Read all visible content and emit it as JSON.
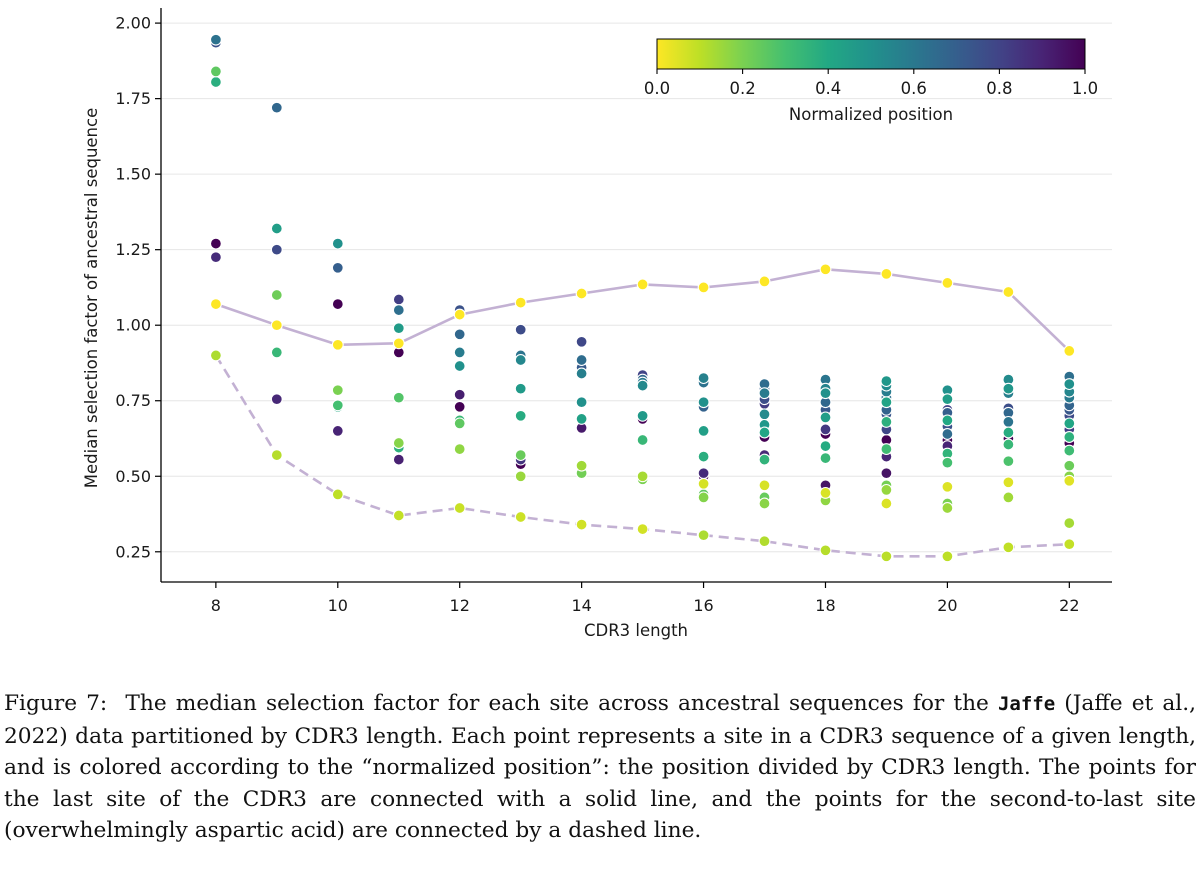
{
  "chart_data": {
    "type": "scatter",
    "xlabel": "CDR3 length",
    "ylabel": "Median selection factor of ancestral sequence",
    "xlim": [
      7.1,
      22.7
    ],
    "ylim": [
      0.15,
      2.05
    ],
    "xticks": [
      8,
      10,
      12,
      14,
      16,
      18,
      20,
      22
    ],
    "yticks": [
      "0.25",
      "0.50",
      "0.75",
      "1.00",
      "1.25",
      "1.50",
      "1.75",
      "2.00"
    ],
    "grid": "horizontal",
    "colormap": "viridis",
    "colorbar": {
      "label": "Normalized position",
      "range": [
        0.0,
        1.0
      ],
      "ticks": [
        "0.0",
        "0.2",
        "0.4",
        "0.6",
        "0.8",
        "1.0"
      ],
      "placement": "top-right"
    },
    "points": [
      {
        "x": 8,
        "y": 1.945,
        "c": 0.375
      },
      {
        "x": 8,
        "y": 1.935,
        "c": 0.25
      },
      {
        "x": 8,
        "y": 1.84,
        "c": 0.75
      },
      {
        "x": 8,
        "y": 1.805,
        "c": 0.625
      },
      {
        "x": 8,
        "y": 1.27,
        "c": 0.0
      },
      {
        "x": 8,
        "y": 1.225,
        "c": 0.125
      },
      {
        "x": 8,
        "y": 1.07,
        "c": 1.0
      },
      {
        "x": 8,
        "y": 0.9,
        "c": 0.875
      },
      {
        "x": 9,
        "y": 1.72,
        "c": 0.333
      },
      {
        "x": 9,
        "y": 1.32,
        "c": 0.556
      },
      {
        "x": 9,
        "y": 1.25,
        "c": 0.222
      },
      {
        "x": 9,
        "y": 1.1,
        "c": 0.778
      },
      {
        "x": 9,
        "y": 1.0,
        "c": 1.0
      },
      {
        "x": 9,
        "y": 0.91,
        "c": 0.667
      },
      {
        "x": 9,
        "y": 0.755,
        "c": 0.111
      },
      {
        "x": 9,
        "y": 0.57,
        "c": 0.889
      },
      {
        "x": 10,
        "y": 1.27,
        "c": 0.5
      },
      {
        "x": 10,
        "y": 1.19,
        "c": 0.3
      },
      {
        "x": 10,
        "y": 1.07,
        "c": 0.0
      },
      {
        "x": 10,
        "y": 0.935,
        "c": 1.0
      },
      {
        "x": 10,
        "y": 0.785,
        "c": 0.8
      },
      {
        "x": 10,
        "y": 0.735,
        "c": 0.7
      },
      {
        "x": 10,
        "y": 0.73,
        "c": 0.6
      },
      {
        "x": 10,
        "y": 0.65,
        "c": 0.1
      },
      {
        "x": 10,
        "y": 0.44,
        "c": 0.9
      },
      {
        "x": 11,
        "y": 1.085,
        "c": 0.182
      },
      {
        "x": 11,
        "y": 1.05,
        "c": 0.364
      },
      {
        "x": 11,
        "y": 0.99,
        "c": 0.545
      },
      {
        "x": 11,
        "y": 0.94,
        "c": 1.0
      },
      {
        "x": 11,
        "y": 0.91,
        "c": 0.0
      },
      {
        "x": 11,
        "y": 0.76,
        "c": 0.727
      },
      {
        "x": 11,
        "y": 0.61,
        "c": 0.818
      },
      {
        "x": 11,
        "y": 0.595,
        "c": 0.636
      },
      {
        "x": 11,
        "y": 0.555,
        "c": 0.091
      },
      {
        "x": 11,
        "y": 0.37,
        "c": 0.909
      },
      {
        "x": 12,
        "y": 1.05,
        "c": 0.25
      },
      {
        "x": 12,
        "y": 1.035,
        "c": 1.0
      },
      {
        "x": 12,
        "y": 0.97,
        "c": 0.333
      },
      {
        "x": 12,
        "y": 0.91,
        "c": 0.417
      },
      {
        "x": 12,
        "y": 0.865,
        "c": 0.5
      },
      {
        "x": 12,
        "y": 0.77,
        "c": 0.083
      },
      {
        "x": 12,
        "y": 0.73,
        "c": 0.0
      },
      {
        "x": 12,
        "y": 0.685,
        "c": 0.667
      },
      {
        "x": 12,
        "y": 0.675,
        "c": 0.75
      },
      {
        "x": 12,
        "y": 0.59,
        "c": 0.583
      },
      {
        "x": 12,
        "y": 0.59,
        "c": 0.833
      },
      {
        "x": 12,
        "y": 0.395,
        "c": 0.917
      },
      {
        "x": 13,
        "y": 1.075,
        "c": 1.0
      },
      {
        "x": 13,
        "y": 0.985,
        "c": 0.231
      },
      {
        "x": 13,
        "y": 0.9,
        "c": 0.385
      },
      {
        "x": 13,
        "y": 0.885,
        "c": 0.462
      },
      {
        "x": 13,
        "y": 0.79,
        "c": 0.538
      },
      {
        "x": 13,
        "y": 0.7,
        "c": 0.615
      },
      {
        "x": 13,
        "y": 0.57,
        "c": 0.769
      },
      {
        "x": 13,
        "y": 0.555,
        "c": 0.154
      },
      {
        "x": 13,
        "y": 0.54,
        "c": 0.0
      },
      {
        "x": 13,
        "y": 0.5,
        "c": 0.846
      },
      {
        "x": 13,
        "y": 0.365,
        "c": 0.923
      },
      {
        "x": 14,
        "y": 1.105,
        "c": 1.0
      },
      {
        "x": 14,
        "y": 0.945,
        "c": 0.214
      },
      {
        "x": 14,
        "y": 0.885,
        "c": 0.357
      },
      {
        "x": 14,
        "y": 0.86,
        "c": 0.286
      },
      {
        "x": 14,
        "y": 0.84,
        "c": 0.429
      },
      {
        "x": 14,
        "y": 0.745,
        "c": 0.5
      },
      {
        "x": 14,
        "y": 0.69,
        "c": 0.571
      },
      {
        "x": 14,
        "y": 0.66,
        "c": 0.071
      },
      {
        "x": 14,
        "y": 0.535,
        "c": 0.857
      },
      {
        "x": 14,
        "y": 0.51,
        "c": 0.786
      },
      {
        "x": 14,
        "y": 0.34,
        "c": 0.929
      },
      {
        "x": 15,
        "y": 1.135,
        "c": 1.0
      },
      {
        "x": 15,
        "y": 0.835,
        "c": 0.2
      },
      {
        "x": 15,
        "y": 0.82,
        "c": 0.333
      },
      {
        "x": 15,
        "y": 0.81,
        "c": 0.4
      },
      {
        "x": 15,
        "y": 0.8,
        "c": 0.467
      },
      {
        "x": 15,
        "y": 0.7,
        "c": 0.533
      },
      {
        "x": 15,
        "y": 0.69,
        "c": 0.0
      },
      {
        "x": 15,
        "y": 0.62,
        "c": 0.667
      },
      {
        "x": 15,
        "y": 0.5,
        "c": 0.867
      },
      {
        "x": 15,
        "y": 0.49,
        "c": 0.8
      },
      {
        "x": 15,
        "y": 0.325,
        "c": 0.933
      },
      {
        "x": 16,
        "y": 1.125,
        "c": 1.0
      },
      {
        "x": 16,
        "y": 0.825,
        "c": 0.438
      },
      {
        "x": 16,
        "y": 0.81,
        "c": 0.375
      },
      {
        "x": 16,
        "y": 0.745,
        "c": 0.5
      },
      {
        "x": 16,
        "y": 0.73,
        "c": 0.313
      },
      {
        "x": 16,
        "y": 0.65,
        "c": 0.563
      },
      {
        "x": 16,
        "y": 0.565,
        "c": 0.625
      },
      {
        "x": 16,
        "y": 0.51,
        "c": 0.125
      },
      {
        "x": 16,
        "y": 0.5,
        "c": 0.0
      },
      {
        "x": 16,
        "y": 0.475,
        "c": 0.938
      },
      {
        "x": 16,
        "y": 0.44,
        "c": 0.75
      },
      {
        "x": 16,
        "y": 0.43,
        "c": 0.813
      },
      {
        "x": 16,
        "y": 0.305,
        "c": 0.875
      },
      {
        "x": 17,
        "y": 1.145,
        "c": 1.0
      },
      {
        "x": 17,
        "y": 0.805,
        "c": 0.353
      },
      {
        "x": 17,
        "y": 0.79,
        "c": 0.294
      },
      {
        "x": 17,
        "y": 0.775,
        "c": 0.412
      },
      {
        "x": 17,
        "y": 0.755,
        "c": 0.235
      },
      {
        "x": 17,
        "y": 0.74,
        "c": 0.176
      },
      {
        "x": 17,
        "y": 0.705,
        "c": 0.471
      },
      {
        "x": 17,
        "y": 0.67,
        "c": 0.529
      },
      {
        "x": 17,
        "y": 0.645,
        "c": 0.588
      },
      {
        "x": 17,
        "y": 0.63,
        "c": 0.0
      },
      {
        "x": 17,
        "y": 0.57,
        "c": 0.118
      },
      {
        "x": 17,
        "y": 0.555,
        "c": 0.647
      },
      {
        "x": 17,
        "y": 0.47,
        "c": 0.941
      },
      {
        "x": 17,
        "y": 0.43,
        "c": 0.765
      },
      {
        "x": 17,
        "y": 0.41,
        "c": 0.824
      },
      {
        "x": 17,
        "y": 0.285,
        "c": 0.882
      },
      {
        "x": 18,
        "y": 1.185,
        "c": 1.0
      },
      {
        "x": 18,
        "y": 0.82,
        "c": 0.389
      },
      {
        "x": 18,
        "y": 0.79,
        "c": 0.444
      },
      {
        "x": 18,
        "y": 0.775,
        "c": 0.5
      },
      {
        "x": 18,
        "y": 0.745,
        "c": 0.333
      },
      {
        "x": 18,
        "y": 0.72,
        "c": 0.278
      },
      {
        "x": 18,
        "y": 0.695,
        "c": 0.556
      },
      {
        "x": 18,
        "y": 0.655,
        "c": 0.167
      },
      {
        "x": 18,
        "y": 0.64,
        "c": 0.0
      },
      {
        "x": 18,
        "y": 0.6,
        "c": 0.611
      },
      {
        "x": 18,
        "y": 0.56,
        "c": 0.667
      },
      {
        "x": 18,
        "y": 0.47,
        "c": 0.056
      },
      {
        "x": 18,
        "y": 0.445,
        "c": 0.944
      },
      {
        "x": 18,
        "y": 0.42,
        "c": 0.833
      },
      {
        "x": 18,
        "y": 0.255,
        "c": 0.889
      },
      {
        "x": 19,
        "y": 1.17,
        "c": 1.0
      },
      {
        "x": 19,
        "y": 0.815,
        "c": 0.526
      },
      {
        "x": 19,
        "y": 0.8,
        "c": 0.474
      },
      {
        "x": 19,
        "y": 0.78,
        "c": 0.421
      },
      {
        "x": 19,
        "y": 0.76,
        "c": 0.368
      },
      {
        "x": 19,
        "y": 0.745,
        "c": 0.579
      },
      {
        "x": 19,
        "y": 0.72,
        "c": 0.316
      },
      {
        "x": 19,
        "y": 0.705,
        "c": 0.263
      },
      {
        "x": 19,
        "y": 0.68,
        "c": 0.632
      },
      {
        "x": 19,
        "y": 0.655,
        "c": 0.211
      },
      {
        "x": 19,
        "y": 0.62,
        "c": 0.0
      },
      {
        "x": 19,
        "y": 0.59,
        "c": 0.684
      },
      {
        "x": 19,
        "y": 0.565,
        "c": 0.105
      },
      {
        "x": 19,
        "y": 0.51,
        "c": 0.053
      },
      {
        "x": 19,
        "y": 0.47,
        "c": 0.789
      },
      {
        "x": 19,
        "y": 0.455,
        "c": 0.842
      },
      {
        "x": 19,
        "y": 0.41,
        "c": 0.947
      },
      {
        "x": 19,
        "y": 0.235,
        "c": 0.895
      },
      {
        "x": 20,
        "y": 1.14,
        "c": 1.0
      },
      {
        "x": 20,
        "y": 0.785,
        "c": 0.5
      },
      {
        "x": 20,
        "y": 0.755,
        "c": 0.55
      },
      {
        "x": 20,
        "y": 0.72,
        "c": 0.2
      },
      {
        "x": 20,
        "y": 0.71,
        "c": 0.3
      },
      {
        "x": 20,
        "y": 0.685,
        "c": 0.6
      },
      {
        "x": 20,
        "y": 0.665,
        "c": 0.25
      },
      {
        "x": 20,
        "y": 0.64,
        "c": 0.35
      },
      {
        "x": 20,
        "y": 0.62,
        "c": 0.0
      },
      {
        "x": 20,
        "y": 0.6,
        "c": 0.1
      },
      {
        "x": 20,
        "y": 0.575,
        "c": 0.65
      },
      {
        "x": 20,
        "y": 0.545,
        "c": 0.7
      },
      {
        "x": 20,
        "y": 0.465,
        "c": 0.95
      },
      {
        "x": 20,
        "y": 0.41,
        "c": 0.8
      },
      {
        "x": 20,
        "y": 0.395,
        "c": 0.85
      },
      {
        "x": 20,
        "y": 0.235,
        "c": 0.9
      },
      {
        "x": 21,
        "y": 1.11,
        "c": 1.0
      },
      {
        "x": 21,
        "y": 0.82,
        "c": 0.476
      },
      {
        "x": 21,
        "y": 0.79,
        "c": 0.524
      },
      {
        "x": 21,
        "y": 0.775,
        "c": 0.429
      },
      {
        "x": 21,
        "y": 0.725,
        "c": 0.238
      },
      {
        "x": 21,
        "y": 0.71,
        "c": 0.333
      },
      {
        "x": 21,
        "y": 0.68,
        "c": 0.381
      },
      {
        "x": 21,
        "y": 0.645,
        "c": 0.619
      },
      {
        "x": 21,
        "y": 0.625,
        "c": 0.0
      },
      {
        "x": 21,
        "y": 0.605,
        "c": 0.667
      },
      {
        "x": 21,
        "y": 0.55,
        "c": 0.714
      },
      {
        "x": 21,
        "y": 0.48,
        "c": 0.952
      },
      {
        "x": 21,
        "y": 0.43,
        "c": 0.857
      },
      {
        "x": 21,
        "y": 0.265,
        "c": 0.905
      },
      {
        "x": 22,
        "y": 0.915,
        "c": 1.0
      },
      {
        "x": 22,
        "y": 0.83,
        "c": 0.364
      },
      {
        "x": 22,
        "y": 0.805,
        "c": 0.5
      },
      {
        "x": 22,
        "y": 0.78,
        "c": 0.455
      },
      {
        "x": 22,
        "y": 0.76,
        "c": 0.409
      },
      {
        "x": 22,
        "y": 0.735,
        "c": 0.318
      },
      {
        "x": 22,
        "y": 0.72,
        "c": 0.273
      },
      {
        "x": 22,
        "y": 0.7,
        "c": 0.227
      },
      {
        "x": 22,
        "y": 0.675,
        "c": 0.591
      },
      {
        "x": 22,
        "y": 0.655,
        "c": 0.182
      },
      {
        "x": 22,
        "y": 0.63,
        "c": 0.636
      },
      {
        "x": 22,
        "y": 0.61,
        "c": 0.0
      },
      {
        "x": 22,
        "y": 0.585,
        "c": 0.682
      },
      {
        "x": 22,
        "y": 0.535,
        "c": 0.773
      },
      {
        "x": 22,
        "y": 0.5,
        "c": 0.818
      },
      {
        "x": 22,
        "y": 0.485,
        "c": 0.955
      },
      {
        "x": 22,
        "y": 0.345,
        "c": 0.864
      },
      {
        "x": 22,
        "y": 0.275,
        "c": 0.909
      }
    ],
    "series": [
      {
        "name": "last site",
        "style": "solid",
        "color": "#c3b1d3",
        "x": [
          8,
          9,
          10,
          11,
          12,
          13,
          14,
          15,
          16,
          17,
          18,
          19,
          20,
          21,
          22
        ],
        "values": [
          1.07,
          1.0,
          0.935,
          0.94,
          1.035,
          1.075,
          1.105,
          1.135,
          1.125,
          1.145,
          1.185,
          1.17,
          1.14,
          1.11,
          0.915
        ]
      },
      {
        "name": "second-to-last site",
        "style": "dashed",
        "color": "#c3b1d3",
        "x": [
          8,
          9,
          10,
          11,
          12,
          13,
          14,
          15,
          16,
          17,
          18,
          19,
          20,
          21,
          22
        ],
        "values": [
          0.9,
          0.57,
          0.44,
          0.37,
          0.395,
          0.365,
          0.34,
          0.325,
          0.305,
          0.285,
          0.255,
          0.235,
          0.235,
          0.265,
          0.275
        ]
      }
    ]
  },
  "caption": {
    "figure_label": "Figure 7:",
    "text_before": "The median selection factor for each site across ancestral sequences for the",
    "dataset_name": "Jaffe",
    "text_after": "(Jaffe et al., 2022) data partitioned by CDR3 length. Each point represents a site in a CDR3 sequence of a given length, and is colored according to the “normalized position”: the position divided by CDR3 length. The points for the last site of the CDR3 are connected with a solid line, and the points for the second-to-last site (overwhelmingly aspartic acid) are connected by a dashed line."
  }
}
